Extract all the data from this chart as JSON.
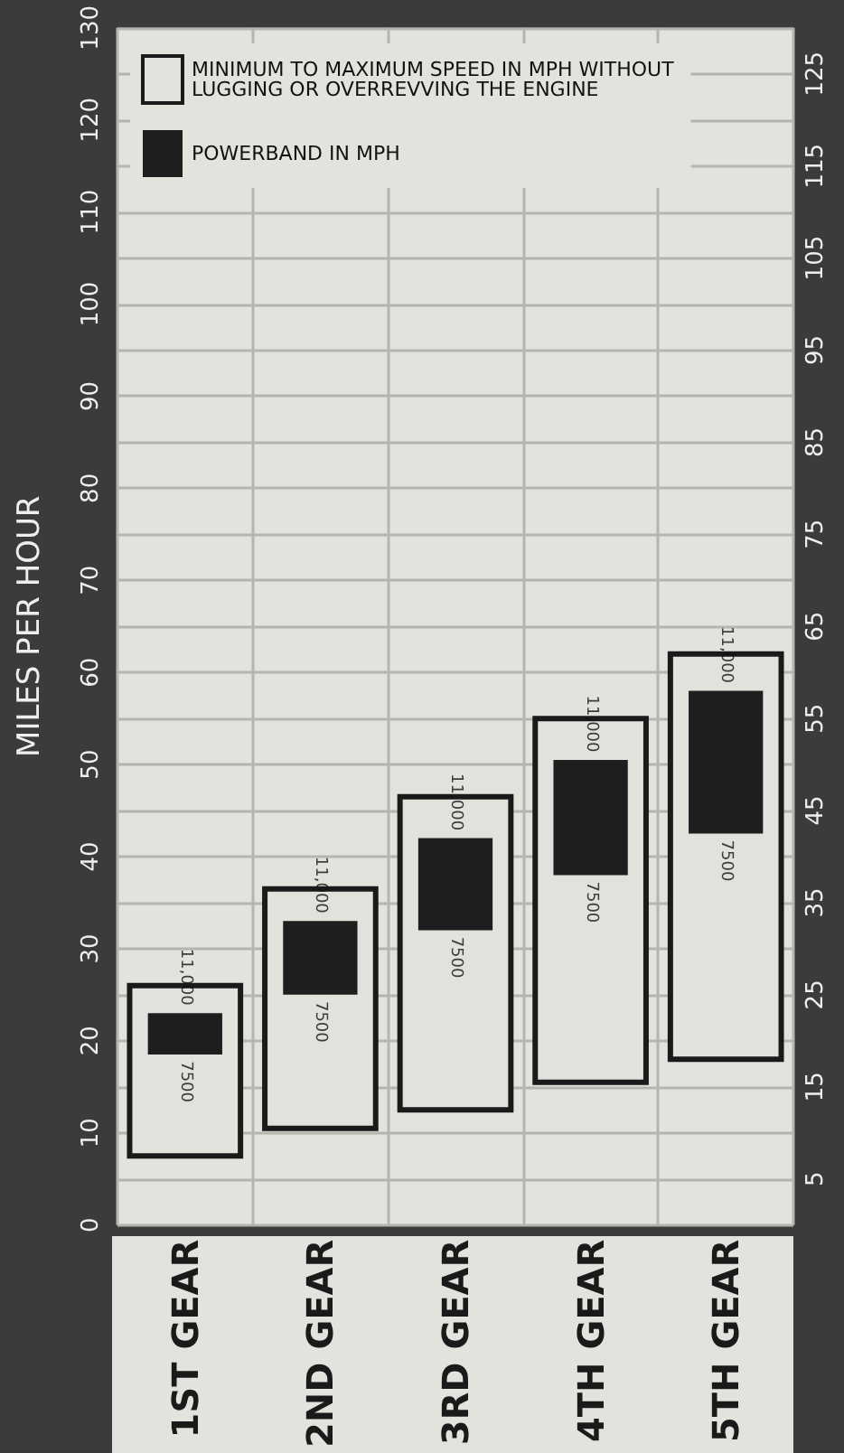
{
  "chart_data": {
    "type": "bar",
    "ylabel": "MILES PER HOUR",
    "categories": [
      "1ST GEAR",
      "2ND GEAR",
      "3RD GEAR",
      "4TH GEAR",
      "5TH GEAR"
    ],
    "series": [
      {
        "name": "MINIMUM TO MAXIMUM SPEED IN MPH WITHOUT LUGGING OR OVERREVVING THE ENGINE",
        "color": "#e2e2dc",
        "base": [
          7.5,
          10.5,
          12.5,
          15.5,
          18
        ],
        "values": [
          18.5,
          26,
          34,
          39.5,
          44
        ]
      },
      {
        "name": "POWERBAND IN MPH",
        "color": "#1e1e1e",
        "base": [
          18.5,
          25,
          32,
          38,
          42.5
        ],
        "values": [
          4.5,
          8,
          10,
          12.5,
          15.5
        ]
      }
    ],
    "ylim": [
      0,
      130
    ],
    "yticks": [
      0,
      10,
      20,
      30,
      40,
      50,
      60,
      70,
      80,
      90,
      100,
      110,
      120,
      130
    ],
    "y2lim": [
      0,
      130
    ],
    "y2ticks": [
      5,
      15,
      25,
      35,
      45,
      55,
      65,
      75,
      85,
      95,
      105,
      115,
      125
    ],
    "annotations": [
      {
        "text": "7500",
        "x": "1ST GEAR",
        "y": 18.5
      },
      {
        "text": "11,000",
        "x": "1ST GEAR",
        "y": 23
      },
      {
        "text": "7500",
        "x": "2ND GEAR",
        "y": 25
      },
      {
        "text": "11,000",
        "x": "2ND GEAR",
        "y": 33
      },
      {
        "text": "7500",
        "x": "3RD GEAR",
        "y": 32
      },
      {
        "text": "11,000",
        "x": "3RD GEAR",
        "y": 42
      },
      {
        "text": "7500",
        "x": "4TH GEAR",
        "y": 38
      },
      {
        "text": "11,000",
        "x": "4TH GEAR",
        "y": 50.5
      },
      {
        "text": "7500",
        "x": "5TH GEAR",
        "y": 42.5
      },
      {
        "text": "11,000",
        "x": "5TH GEAR",
        "y": 58
      }
    ],
    "grid": true,
    "legend": "top left"
  }
}
